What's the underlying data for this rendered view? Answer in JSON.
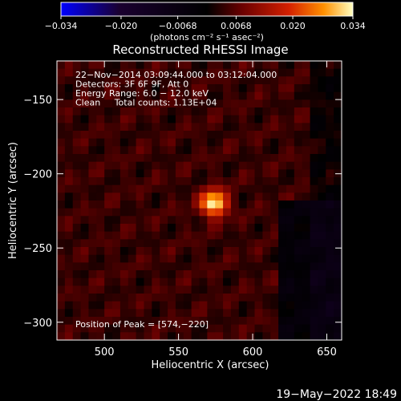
{
  "chart_data": {
    "type": "heatmap",
    "title": "Reconstructed RHESSI Image",
    "xlabel": "Heliocentric X (arcsec)",
    "ylabel": "Heliocentric Y (arcsec)",
    "xlim": [
      468,
      660
    ],
    "ylim": [
      -312,
      -124
    ],
    "x_ticks": [
      500,
      550,
      600,
      650
    ],
    "y_ticks": [
      -150,
      -200,
      -250,
      -300
    ],
    "x_tick_labels": [
      "500",
      "550",
      "600",
      "650"
    ],
    "y_tick_labels": [
      "−150",
      "−200",
      "−250",
      "−300"
    ],
    "colorbar": {
      "range": [
        -0.034,
        0.034
      ],
      "ticks": [
        -0.034,
        -0.02,
        -0.0068,
        0.0068,
        0.02,
        0.034
      ],
      "tick_labels": [
        "−0.034",
        "−0.020",
        "−0.0068",
        "0.0068",
        "0.020",
        "0.034"
      ],
      "units": "(photons cm⁻² s⁻¹ asec⁻²)",
      "colors": [
        "#0000ff",
        "#000000",
        "#6a0000",
        "#d42000",
        "#ff9000",
        "#ffffc0"
      ]
    },
    "annotations": [
      "22−Nov−2014 03:09:44.000 to 03:12:04.000",
      "Detectors: 3F 6F 9F, Att 0",
      "Energy Range: 6.0 − 12.0 keV",
      "Clean     Total counts: 1.13E+04"
    ],
    "peak_label": "Position of Peak = [574,−220]",
    "peak": {
      "x": 574,
      "y": -220,
      "value": 0.034
    },
    "background_level": 0.0045
  },
  "footer": {
    "timestamp": "19−May−2022 18:49"
  }
}
